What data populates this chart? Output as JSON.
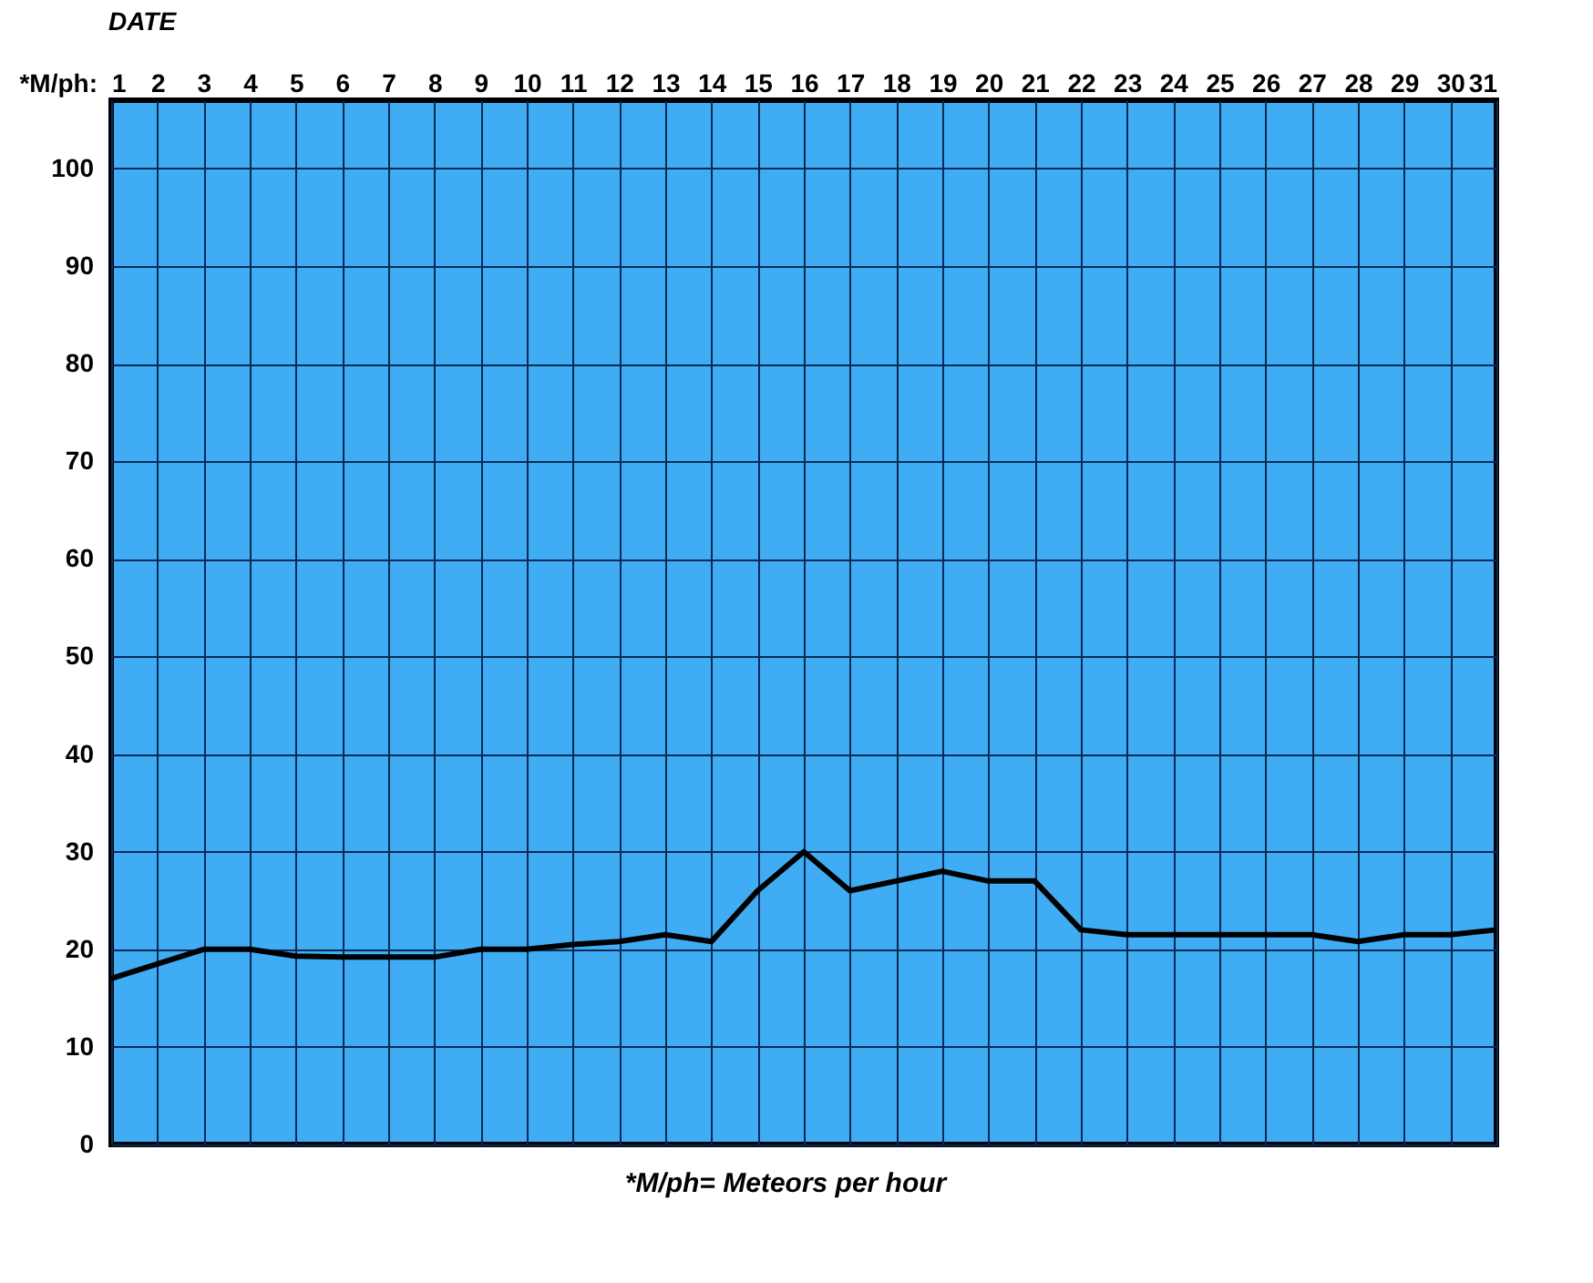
{
  "chart_data": {
    "type": "line",
    "xlabel": "DATE",
    "ylabel": "*M/ph:",
    "annotations": [
      "*M/ph= Meteors per hour"
    ],
    "x": [
      1,
      2,
      3,
      4,
      5,
      6,
      7,
      8,
      9,
      10,
      11,
      12,
      13,
      14,
      15,
      16,
      17,
      18,
      19,
      20,
      21,
      22,
      23,
      24,
      25,
      26,
      27,
      28,
      29,
      30,
      31
    ],
    "series": [
      {
        "color": "#000000",
        "values": [
          17,
          18.5,
          20,
          20,
          19.3,
          19.2,
          19.2,
          19.2,
          20,
          20,
          20.5,
          20.8,
          21.5,
          20.8,
          26,
          30,
          26,
          27,
          28,
          27,
          27,
          22,
          21.5,
          21.5,
          21.5,
          21.5,
          21.5,
          20.8,
          21.5,
          21.5,
          22
        ]
      }
    ],
    "xlim": [
      1,
      31
    ],
    "xticks": [
      1,
      2,
      3,
      4,
      5,
      6,
      7,
      8,
      9,
      10,
      11,
      12,
      13,
      14,
      15,
      16,
      17,
      18,
      19,
      20,
      21,
      22,
      23,
      24,
      25,
      26,
      27,
      28,
      29,
      30,
      31
    ],
    "ylim": [
      0,
      107
    ],
    "yticks": [
      0,
      10,
      20,
      30,
      40,
      50,
      60,
      70,
      80,
      90,
      100
    ],
    "grid": true,
    "marker": "none",
    "line_style": "solid"
  }
}
